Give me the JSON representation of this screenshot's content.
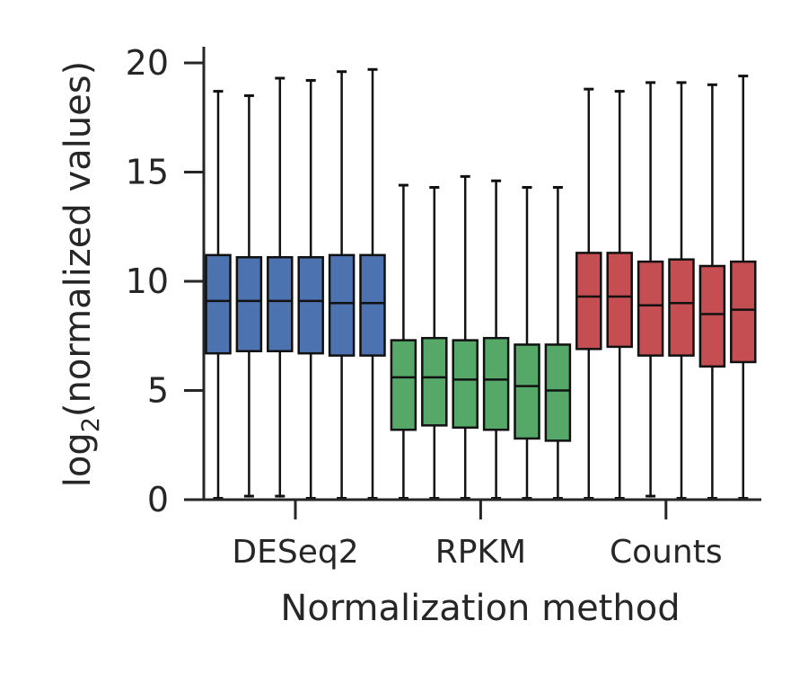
{
  "chart_data": {
    "type": "box",
    "xlabel": "Normalization method",
    "ylabel": "log",
    "ylabel_sub": "2",
    "ylabel_rest": "(normalized values)",
    "ylim": [
      0,
      20.5
    ],
    "yticks": [
      0,
      5,
      10,
      15,
      20
    ],
    "categories": [
      "DESeq2",
      "RPKM",
      "Counts"
    ],
    "grid": false,
    "groups": [
      {
        "name": "DESeq2",
        "color": "#4c72b0",
        "boxes": [
          {
            "min": 0.0,
            "q1": 6.7,
            "median": 9.1,
            "q3": 11.2,
            "max": 18.7
          },
          {
            "min": 0.1,
            "q1": 6.8,
            "median": 9.1,
            "q3": 11.1,
            "max": 18.5
          },
          {
            "min": 0.1,
            "q1": 6.8,
            "median": 9.1,
            "q3": 11.1,
            "max": 19.3
          },
          {
            "min": 0.0,
            "q1": 6.7,
            "median": 9.1,
            "q3": 11.1,
            "max": 19.2
          },
          {
            "min": 0.0,
            "q1": 6.6,
            "median": 9.0,
            "q3": 11.2,
            "max": 19.6
          },
          {
            "min": 0.0,
            "q1": 6.6,
            "median": 9.0,
            "q3": 11.2,
            "max": 19.7
          }
        ]
      },
      {
        "name": "RPKM",
        "color": "#55a868",
        "boxes": [
          {
            "min": 0.0,
            "q1": 3.2,
            "median": 5.6,
            "q3": 7.3,
            "max": 14.4
          },
          {
            "min": 0.0,
            "q1": 3.4,
            "median": 5.6,
            "q3": 7.4,
            "max": 14.3
          },
          {
            "min": 0.0,
            "q1": 3.3,
            "median": 5.5,
            "q3": 7.3,
            "max": 14.8
          },
          {
            "min": 0.0,
            "q1": 3.2,
            "median": 5.5,
            "q3": 7.4,
            "max": 14.6
          },
          {
            "min": 0.0,
            "q1": 2.8,
            "median": 5.2,
            "q3": 7.1,
            "max": 14.3
          },
          {
            "min": 0.0,
            "q1": 2.7,
            "median": 5.0,
            "q3": 7.1,
            "max": 14.3
          }
        ]
      },
      {
        "name": "Counts",
        "color": "#c44e52",
        "boxes": [
          {
            "min": 0.0,
            "q1": 6.9,
            "median": 9.3,
            "q3": 11.3,
            "max": 18.8
          },
          {
            "min": 0.0,
            "q1": 7.0,
            "median": 9.3,
            "q3": 11.3,
            "max": 18.7
          },
          {
            "min": 0.1,
            "q1": 6.6,
            "median": 8.9,
            "q3": 10.9,
            "max": 19.1
          },
          {
            "min": 0.0,
            "q1": 6.6,
            "median": 9.0,
            "q3": 11.0,
            "max": 19.1
          },
          {
            "min": 0.0,
            "q1": 6.1,
            "median": 8.5,
            "q3": 10.7,
            "max": 19.0
          },
          {
            "min": 0.0,
            "q1": 6.3,
            "median": 8.7,
            "q3": 10.9,
            "max": 19.4
          }
        ]
      }
    ]
  }
}
